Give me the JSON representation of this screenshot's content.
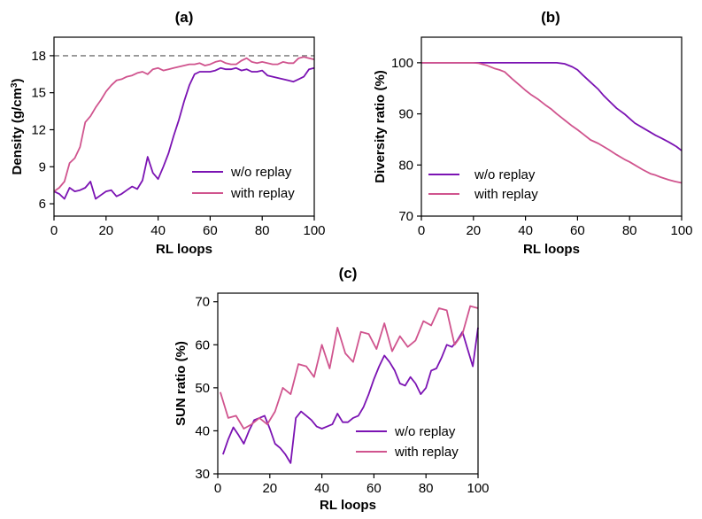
{
  "colors": {
    "without_replay": "#7b13b3",
    "with_replay": "#d0548e",
    "reference_line": "#888888"
  },
  "chart_data": [
    {
      "type": "line",
      "title": "(a)",
      "xlabel": "RL loops",
      "ylabel": "Density (g/cm",
      "ylabel_sup": "3",
      "ylabel_end": ")",
      "xlim": [
        0,
        100
      ],
      "ylim": [
        5,
        19.5
      ],
      "xticks": [
        0,
        20,
        40,
        60,
        80,
        100
      ],
      "yticks": [
        6,
        9,
        12,
        15,
        18
      ],
      "reference_line": 18,
      "grid": false,
      "legend_position": "lower-right",
      "series": [
        {
          "name": "w/o replay",
          "color_key": "without_replay",
          "x": [
            0,
            2,
            4,
            6,
            8,
            10,
            12,
            14,
            16,
            18,
            20,
            22,
            24,
            26,
            28,
            30,
            32,
            34,
            36,
            38,
            40,
            42,
            44,
            46,
            48,
            50,
            52,
            54,
            56,
            58,
            60,
            62,
            64,
            66,
            68,
            70,
            72,
            74,
            76,
            78,
            80,
            82,
            84,
            86,
            88,
            90,
            92,
            94,
            96,
            98,
            100
          ],
          "y": [
            7.0,
            6.8,
            6.4,
            7.3,
            7.0,
            7.1,
            7.3,
            7.8,
            6.4,
            6.7,
            7.0,
            7.1,
            6.6,
            6.8,
            7.1,
            7.4,
            7.2,
            7.9,
            9.8,
            8.5,
            8.0,
            9.0,
            10.1,
            11.5,
            12.8,
            14.3,
            15.6,
            16.5,
            16.7,
            16.7,
            16.7,
            16.8,
            17.0,
            16.9,
            16.9,
            17.0,
            16.8,
            16.9,
            16.7,
            16.7,
            16.8,
            16.4,
            16.3,
            16.2,
            16.1,
            16.0,
            15.9,
            16.1,
            16.3,
            16.9,
            17.0
          ]
        },
        {
          "name": "with replay",
          "color_key": "with_replay",
          "x": [
            0,
            2,
            4,
            6,
            8,
            10,
            12,
            14,
            16,
            18,
            20,
            22,
            24,
            26,
            28,
            30,
            32,
            34,
            36,
            38,
            40,
            42,
            44,
            46,
            48,
            50,
            52,
            54,
            56,
            58,
            60,
            62,
            64,
            66,
            68,
            70,
            72,
            74,
            76,
            78,
            80,
            82,
            84,
            86,
            88,
            90,
            92,
            94,
            96,
            98,
            100
          ],
          "y": [
            7.0,
            7.3,
            7.8,
            9.3,
            9.7,
            10.6,
            12.6,
            13.1,
            13.8,
            14.4,
            15.1,
            15.6,
            16.0,
            16.1,
            16.3,
            16.4,
            16.6,
            16.7,
            16.5,
            16.9,
            17.0,
            16.8,
            16.9,
            17.0,
            17.1,
            17.2,
            17.3,
            17.3,
            17.4,
            17.2,
            17.3,
            17.5,
            17.6,
            17.4,
            17.3,
            17.3,
            17.6,
            17.8,
            17.5,
            17.4,
            17.5,
            17.4,
            17.3,
            17.3,
            17.5,
            17.4,
            17.4,
            17.8,
            17.9,
            17.8,
            17.7
          ]
        }
      ]
    },
    {
      "type": "line",
      "title": "(b)",
      "xlabel": "RL loops",
      "ylabel": "Diversity ratio (%)",
      "xlim": [
        0,
        100
      ],
      "ylim": [
        70,
        105
      ],
      "xticks": [
        0,
        20,
        40,
        60,
        80,
        100
      ],
      "yticks": [
        70,
        80,
        90,
        100
      ],
      "grid": false,
      "legend_position": "lower-left",
      "series": [
        {
          "name": "w/o replay",
          "color_key": "without_replay",
          "x": [
            0,
            5,
            10,
            15,
            20,
            25,
            30,
            35,
            40,
            45,
            50,
            52,
            55,
            58,
            60,
            62,
            65,
            68,
            70,
            72,
            75,
            78,
            80,
            82,
            85,
            88,
            90,
            92,
            95,
            98,
            100
          ],
          "y": [
            100,
            100,
            100,
            100,
            100,
            100,
            100,
            100,
            100,
            100,
            100,
            100,
            99.8,
            99.2,
            98.6,
            97.6,
            96.2,
            94.8,
            93.6,
            92.6,
            91.1,
            90.0,
            89.1,
            88.2,
            87.3,
            86.4,
            85.8,
            85.3,
            84.5,
            83.6,
            82.8
          ]
        },
        {
          "name": "with replay",
          "color_key": "with_replay",
          "x": [
            0,
            5,
            10,
            15,
            20,
            22,
            25,
            28,
            30,
            32,
            35,
            38,
            40,
            42,
            45,
            48,
            50,
            52,
            55,
            58,
            60,
            62,
            65,
            68,
            70,
            72,
            75,
            78,
            80,
            82,
            85,
            88,
            90,
            92,
            95,
            98,
            100
          ],
          "y": [
            100,
            100,
            100,
            100,
            100,
            99.9,
            99.5,
            98.9,
            98.6,
            98.2,
            96.8,
            95.5,
            94.6,
            93.8,
            92.8,
            91.6,
            90.9,
            90.0,
            88.8,
            87.6,
            86.9,
            86.1,
            84.9,
            84.2,
            83.6,
            83.0,
            82.0,
            81.1,
            80.6,
            80.0,
            79.1,
            78.3,
            78.0,
            77.6,
            77.1,
            76.7,
            76.5
          ]
        }
      ]
    },
    {
      "type": "line",
      "title": "(c)",
      "xlabel": "RL loops",
      "ylabel": "SUN ratio (%)",
      "xlim": [
        0,
        100
      ],
      "ylim": [
        30,
        72
      ],
      "xticks": [
        0,
        20,
        40,
        60,
        80,
        100
      ],
      "yticks": [
        30,
        40,
        50,
        60,
        70
      ],
      "grid": false,
      "legend_position": "lower-right",
      "series": [
        {
          "name": "w/o replay",
          "color_key": "without_replay",
          "x": [
            2,
            4,
            6,
            8,
            10,
            12,
            14,
            16,
            18,
            20,
            22,
            24,
            26,
            28,
            30,
            32,
            34,
            36,
            38,
            40,
            42,
            44,
            46,
            48,
            50,
            52,
            54,
            56,
            58,
            60,
            62,
            64,
            66,
            68,
            70,
            72,
            74,
            76,
            78,
            80,
            82,
            84,
            86,
            88,
            90,
            92,
            94,
            96,
            98,
            100
          ],
          "y": [
            34.5,
            38.0,
            40.8,
            39.0,
            37.0,
            40.0,
            42.5,
            43.0,
            43.5,
            40.5,
            37.0,
            36.0,
            34.5,
            32.5,
            43.0,
            44.5,
            43.5,
            42.5,
            41.0,
            40.5,
            41.0,
            41.5,
            44.0,
            42.0,
            42.0,
            43.0,
            43.5,
            45.5,
            48.5,
            52.0,
            55.0,
            57.5,
            56.0,
            54.0,
            51.0,
            50.5,
            52.5,
            51.0,
            48.5,
            50.0,
            54.0,
            54.5,
            57.0,
            60.0,
            59.5,
            61.0,
            63.0,
            59.0,
            55.0,
            64.0
          ]
        },
        {
          "name": "with replay",
          "color_key": "with_replay",
          "x": [
            1,
            4,
            7,
            10,
            13,
            16,
            19,
            22,
            25,
            28,
            31,
            34,
            37,
            40,
            43,
            46,
            49,
            52,
            55,
            58,
            61,
            64,
            67,
            70,
            73,
            76,
            79,
            82,
            85,
            88,
            91,
            94,
            97,
            100
          ],
          "y": [
            49.0,
            43.0,
            43.5,
            40.5,
            41.5,
            43.0,
            41.5,
            44.5,
            50.0,
            48.5,
            55.5,
            55.0,
            52.5,
            60.0,
            54.5,
            64.0,
            58.0,
            56.0,
            63.0,
            62.5,
            59.0,
            65.0,
            58.5,
            62.0,
            59.5,
            61.0,
            65.5,
            64.5,
            68.5,
            68.0,
            60.0,
            62.5,
            69.0,
            68.5
          ]
        }
      ]
    }
  ]
}
